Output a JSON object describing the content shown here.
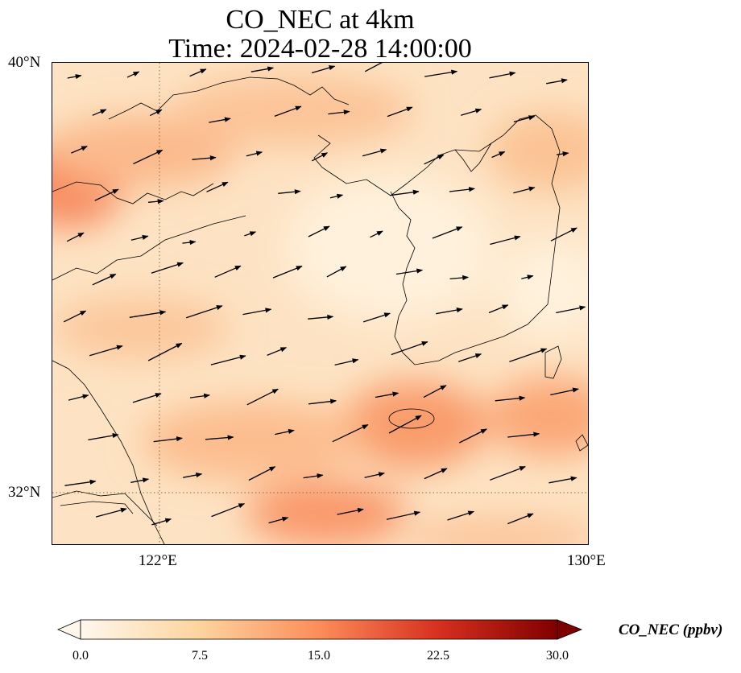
{
  "title": {
    "line1": "CO_NEC at 4km",
    "line2": "Time: 2024-02-28 14:00:00"
  },
  "map": {
    "lat_labels": [
      "40°N",
      "32°N"
    ],
    "lon_labels": [
      "122°E",
      "130°E"
    ],
    "extent": {
      "lon_min": 120,
      "lon_max": 130,
      "lat_min": 31,
      "lat_max": 40
    },
    "gridlines": {
      "lons": [
        122
      ],
      "lats": [
        32
      ],
      "style": "dotted"
    },
    "field_colormap": "OrRd",
    "wind_vectors": "black arrows, predominantly westerly / west-south-westerly"
  },
  "colorbar": {
    "label": "CO_NEC (ppbv)",
    "ticks": [
      "0.0",
      "7.5",
      "15.0",
      "22.5",
      "30.0"
    ],
    "min": 0.0,
    "max": 30.0,
    "colors": [
      "#fff7ec",
      "#fdd49e",
      "#fc8d59",
      "#d7301f",
      "#7f0000"
    ]
  }
}
